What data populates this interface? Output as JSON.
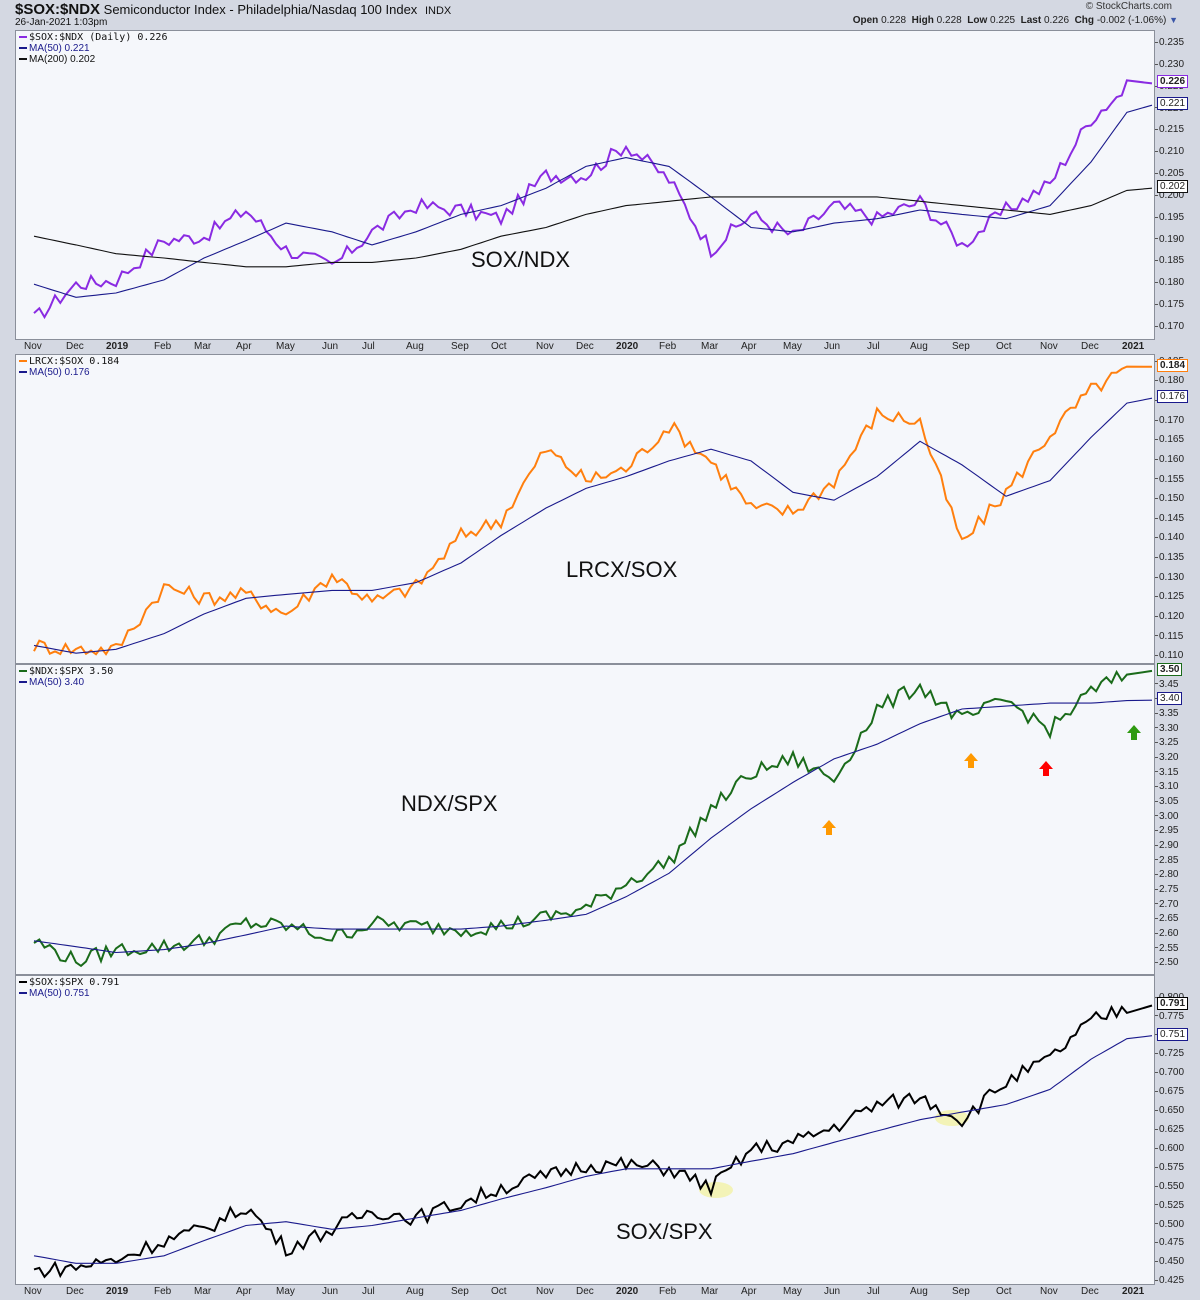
{
  "header": {
    "symbol": "$SOX:$NDX",
    "description": "Semiconductor Index - Philadelphia/Nasdaq 100 Index",
    "exchange": "INDX",
    "date": "26-Jan-2021 1:03pm",
    "brand": "© StockCharts.com",
    "quote": {
      "open_label": "Open",
      "open": "0.228",
      "high_label": "High",
      "high": "0.228",
      "low_label": "Low",
      "low": "0.225",
      "last_label": "Last",
      "last": "0.226",
      "chg_label": "Chg",
      "chg": "-0.002 (-1.06%)"
    }
  },
  "x_axis_labels": [
    "Nov",
    "Dec",
    "2019",
    "Feb",
    "Mar",
    "Apr",
    "May",
    "Jun",
    "Jul",
    "Aug",
    "Sep",
    "Oct",
    "Nov",
    "Dec",
    "2020",
    "Feb",
    "Mar",
    "Apr",
    "May",
    "Jun",
    "Jul",
    "Aug",
    "Sep",
    "Oct",
    "Nov",
    "Dec",
    "2021"
  ],
  "colors": {
    "sox_ndx": "#8a2be2",
    "lrcx_sox": "#ff7f0e",
    "ndx_spx": "#1a6b1a",
    "sox_spx": "#000000",
    "ma50": "#1a1a8c",
    "ma200": "#111111",
    "arrow_orange": "#ff9900",
    "arrow_red": "#ff0000",
    "arrow_green": "#2e9a10",
    "highlight": "#f0f080"
  },
  "panels": {
    "p1": {
      "legend_main": "$SOX:$NDX (Daily) 0.226",
      "legend_ma50": "MA(50) 0.221",
      "legend_ma200": "MA(200) 0.202",
      "label": "SOX/NDX",
      "ticks": [
        "0.235",
        "0.230",
        "0.225",
        "0.220",
        "0.215",
        "0.210",
        "0.205",
        "0.200",
        "0.195",
        "0.190",
        "0.185",
        "0.180",
        "0.175",
        "0.170"
      ],
      "tag_last": "0.226",
      "tag_ma50": "0.221",
      "tag_ma200": "0.202"
    },
    "p2": {
      "legend_main": "LRCX:$SOX 0.184",
      "legend_ma50": "MA(50) 0.176",
      "label": "LRCX/SOX",
      "ticks": [
        "0.185",
        "0.180",
        "0.175",
        "0.170",
        "0.165",
        "0.160",
        "0.155",
        "0.150",
        "0.145",
        "0.140",
        "0.135",
        "0.130",
        "0.125",
        "0.120",
        "0.115",
        "0.110"
      ],
      "tag_last": "0.184",
      "tag_ma50": "0.176"
    },
    "p3": {
      "legend_main": "$NDX:$SPX 3.50",
      "legend_ma50": "MA(50) 3.40",
      "label": "NDX/SPX",
      "ticks": [
        "3.45",
        "3.40",
        "3.35",
        "3.30",
        "3.25",
        "3.20",
        "3.15",
        "3.10",
        "3.05",
        "3.00",
        "2.95",
        "2.90",
        "2.85",
        "2.80",
        "2.75",
        "2.70",
        "2.65",
        "2.60",
        "2.55",
        "2.50"
      ],
      "tag_last": "3.50",
      "tag_ma50": "3.40"
    },
    "p4": {
      "legend_main": "$SOX:$SPX 0.791",
      "legend_ma50": "MA(50) 0.751",
      "label": "SOX/SPX",
      "ticks": [
        "0.800",
        "0.775",
        "0.750",
        "0.725",
        "0.700",
        "0.675",
        "0.650",
        "0.625",
        "0.600",
        "0.575",
        "0.550",
        "0.525",
        "0.500",
        "0.475",
        "0.450",
        "0.425"
      ],
      "tag_last": "0.791",
      "tag_ma50": "0.751"
    }
  },
  "chart_data": [
    {
      "type": "line",
      "title": "$SOX:$NDX Semiconductor Index - Philadelphia/Nasdaq 100 Index (Daily)",
      "label": "SOX/NDX",
      "x": [
        "Nov 2018",
        "Dec",
        "Jan 2019",
        "Feb",
        "Mar",
        "Apr",
        "May",
        "Jun",
        "Jul",
        "Aug",
        "Sep",
        "Oct",
        "Nov",
        "Dec",
        "Jan 2020",
        "Feb",
        "Mar",
        "Apr",
        "May",
        "Jun",
        "Jul",
        "Aug",
        "Sep",
        "Oct",
        "Nov",
        "Dec",
        "Jan 2021"
      ],
      "series": [
        {
          "name": "$SOX:$NDX",
          "values": [
            0.172,
            0.18,
            0.181,
            0.19,
            0.191,
            0.197,
            0.188,
            0.184,
            0.192,
            0.198,
            0.197,
            0.195,
            0.205,
            0.205,
            0.212,
            0.204,
            0.188,
            0.196,
            0.191,
            0.198,
            0.195,
            0.199,
            0.189,
            0.197,
            0.203,
            0.218,
            0.226
          ]
        },
        {
          "name": "MA(50)",
          "values": [
            0.18,
            0.177,
            0.178,
            0.181,
            0.186,
            0.19,
            0.194,
            0.192,
            0.189,
            0.192,
            0.196,
            0.198,
            0.202,
            0.207,
            0.209,
            0.207,
            0.2,
            0.193,
            0.192,
            0.194,
            0.195,
            0.197,
            0.196,
            0.195,
            0.198,
            0.208,
            0.221
          ]
        },
        {
          "name": "MA(200)",
          "values": [
            0.191,
            0.189,
            0.187,
            0.186,
            0.185,
            0.184,
            0.184,
            0.185,
            0.185,
            0.186,
            0.188,
            0.191,
            0.193,
            0.196,
            0.198,
            0.199,
            0.2,
            0.2,
            0.2,
            0.2,
            0.2,
            0.199,
            0.198,
            0.197,
            0.196,
            0.198,
            0.202
          ]
        }
      ],
      "ylim": [
        0.167,
        0.238
      ],
      "grid": false
    },
    {
      "type": "line",
      "title": "LRCX:$SOX",
      "label": "LRCX/SOX",
      "x": [
        "Nov 2018",
        "Dec",
        "Jan 2019",
        "Feb",
        "Mar",
        "Apr",
        "May",
        "Jun",
        "Jul",
        "Aug",
        "Sep",
        "Oct",
        "Nov",
        "Dec",
        "Jan 2020",
        "Feb",
        "Mar",
        "Apr",
        "May",
        "Jun",
        "Jul",
        "Aug",
        "Sep",
        "Oct",
        "Nov",
        "Dec",
        "Jan 2021"
      ],
      "series": [
        {
          "name": "LRCX:$SOX",
          "values": [
            0.113,
            0.112,
            0.112,
            0.128,
            0.125,
            0.126,
            0.121,
            0.131,
            0.124,
            0.128,
            0.141,
            0.145,
            0.163,
            0.155,
            0.158,
            0.169,
            0.16,
            0.148,
            0.147,
            0.155,
            0.172,
            0.17,
            0.139,
            0.152,
            0.167,
            0.178,
            0.184
          ]
        },
        {
          "name": "MA(50)",
          "values": [
            0.113,
            0.111,
            0.112,
            0.116,
            0.121,
            0.125,
            0.126,
            0.127,
            0.127,
            0.129,
            0.134,
            0.141,
            0.148,
            0.153,
            0.156,
            0.16,
            0.163,
            0.16,
            0.152,
            0.15,
            0.156,
            0.165,
            0.159,
            0.151,
            0.155,
            0.166,
            0.176
          ]
        }
      ],
      "ylim": [
        0.108,
        0.187
      ],
      "grid": false
    },
    {
      "type": "line",
      "title": "$NDX:$SPX",
      "label": "NDX/SPX",
      "x": [
        "Nov 2018",
        "Dec",
        "Jan 2019",
        "Feb",
        "Mar",
        "Apr",
        "May",
        "Jun",
        "Jul",
        "Aug",
        "Sep",
        "Oct",
        "Nov",
        "Dec",
        "Jan 2020",
        "Feb",
        "Mar",
        "Apr",
        "May",
        "Jun",
        "Jul",
        "Aug",
        "Sep",
        "Oct",
        "Nov",
        "Dec",
        "Jan 2021"
      ],
      "series": [
        {
          "name": "$NDX:$SPX",
          "values": [
            2.58,
            2.51,
            2.55,
            2.56,
            2.58,
            2.64,
            2.63,
            2.59,
            2.64,
            2.63,
            2.62,
            2.63,
            2.66,
            2.69,
            2.78,
            2.85,
            3.03,
            3.15,
            3.2,
            3.13,
            3.37,
            3.45,
            3.33,
            3.4,
            3.3,
            3.43,
            3.5
          ]
        },
        {
          "name": "MA(50)",
          "values": [
            2.58,
            2.56,
            2.54,
            2.55,
            2.57,
            2.6,
            2.63,
            2.62,
            2.62,
            2.62,
            2.62,
            2.63,
            2.65,
            2.67,
            2.73,
            2.81,
            2.93,
            3.03,
            3.12,
            3.2,
            3.25,
            3.32,
            3.37,
            3.38,
            3.39,
            3.39,
            3.4
          ]
        }
      ],
      "annotations": [
        {
          "type": "arrow-up",
          "color": "orange",
          "near": "Jun 2020"
        },
        {
          "type": "arrow-up",
          "color": "orange",
          "near": "Sep 2020"
        },
        {
          "type": "arrow-up",
          "color": "red",
          "near": "Nov 2020"
        },
        {
          "type": "arrow-up",
          "color": "green",
          "near": "Jan 2021"
        }
      ],
      "ylim": [
        2.46,
        3.52
      ],
      "grid": false
    },
    {
      "type": "line",
      "title": "$SOX:$SPX",
      "label": "SOX/SPX",
      "x": [
        "Nov 2018",
        "Dec",
        "Jan 2019",
        "Feb",
        "Mar",
        "Apr",
        "May",
        "Jun",
        "Jul",
        "Aug",
        "Sep",
        "Oct",
        "Nov",
        "Dec",
        "Jan 2020",
        "Feb",
        "Mar",
        "Apr",
        "May",
        "Jun",
        "Jul",
        "Aug",
        "Sep",
        "Oct",
        "Nov",
        "Dec",
        "Jan 2021"
      ],
      "series": [
        {
          "name": "$SOX:$SPX",
          "values": [
            0.44,
            0.445,
            0.455,
            0.48,
            0.495,
            0.525,
            0.47,
            0.495,
            0.52,
            0.51,
            0.53,
            0.55,
            0.565,
            0.58,
            0.58,
            0.575,
            0.55,
            0.6,
            0.61,
            0.63,
            0.66,
            0.67,
            0.64,
            0.69,
            0.72,
            0.77,
            0.791
          ]
        },
        {
          "name": "MA(50)",
          "values": [
            0.46,
            0.45,
            0.45,
            0.46,
            0.48,
            0.5,
            0.505,
            0.495,
            0.5,
            0.51,
            0.52,
            0.535,
            0.55,
            0.565,
            0.575,
            0.575,
            0.575,
            0.585,
            0.595,
            0.61,
            0.625,
            0.64,
            0.65,
            0.66,
            0.68,
            0.72,
            0.751
          ]
        }
      ],
      "annotations": [
        {
          "type": "highlight-ellipse",
          "color": "yellow",
          "near": "Mar 2020"
        },
        {
          "type": "highlight-ellipse",
          "color": "yellow",
          "near": "Sep 2020"
        }
      ],
      "ylim": [
        0.42,
        0.83
      ],
      "grid": false
    }
  ]
}
